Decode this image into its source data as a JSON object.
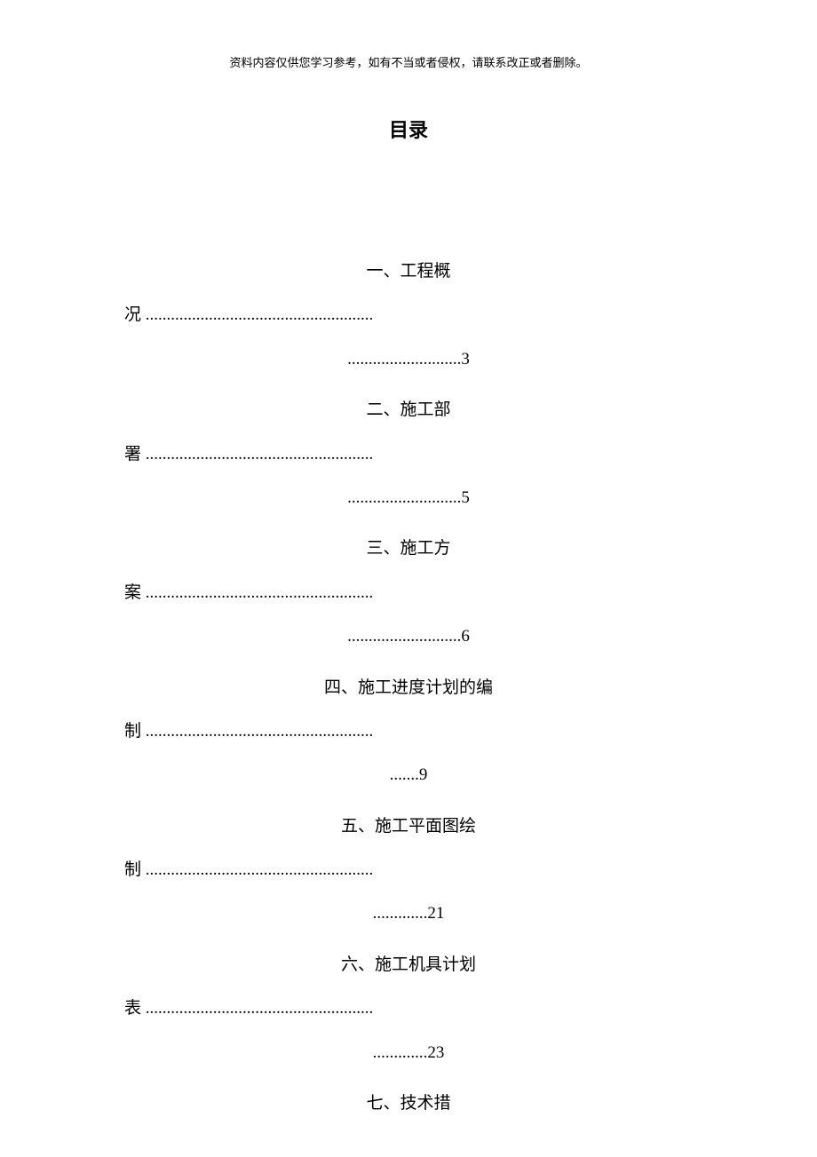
{
  "header_note": "资料内容仅供您学习参考，如有不当或者侵权，请联系改正或者删除。",
  "title": "目录",
  "toc": [
    {
      "head": "一、工程概",
      "tail": "况 ......................................................",
      "page": "...........................3"
    },
    {
      "head": "二、施工部",
      "tail": "署 ......................................................",
      "page": "...........................5"
    },
    {
      "head": "三、施工方",
      "tail": "案 ......................................................",
      "page": "...........................6"
    },
    {
      "head": "四、施工进度计划的编",
      "tail": "制 ......................................................",
      "page": ".......9"
    },
    {
      "head": "五、施工平面图绘",
      "tail": "制 ......................................................",
      "page": ".............21"
    },
    {
      "head": "六、施工机具计划",
      "tail": "表 ......................................................",
      "page": ".............23"
    },
    {
      "head": "七、技术措",
      "tail": "",
      "page": ""
    }
  ]
}
